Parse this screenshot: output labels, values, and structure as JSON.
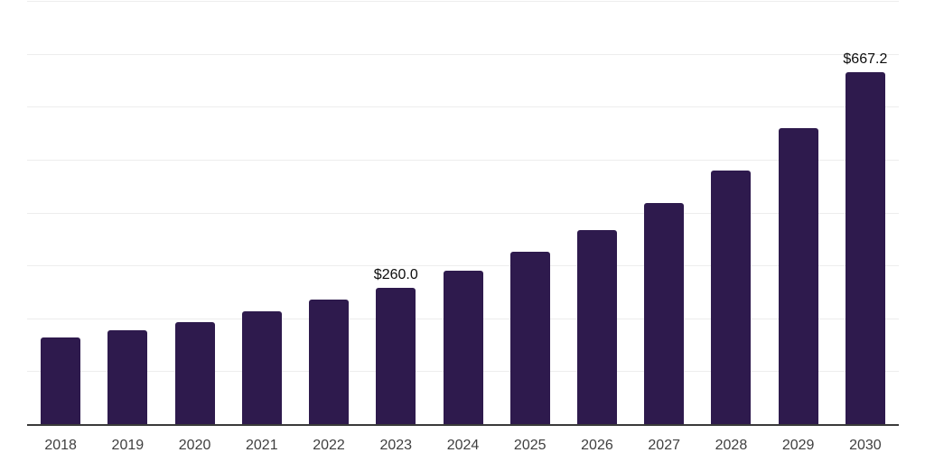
{
  "chart_data": {
    "type": "bar",
    "title": "",
    "xlabel": "",
    "ylabel": "",
    "categories": [
      "2018",
      "2019",
      "2020",
      "2021",
      "2022",
      "2023",
      "2024",
      "2025",
      "2026",
      "2027",
      "2028",
      "2029",
      "2030"
    ],
    "values": [
      165.3,
      179.0,
      195.2,
      214.8,
      236.9,
      260.0,
      291.5,
      327.3,
      368.2,
      419.3,
      480.7,
      560.8,
      667.2
    ],
    "data_labels": [
      "",
      "",
      "",
      "",
      "",
      "$260.0",
      "",
      "",
      "",
      "",
      "",
      "",
      "$667.2"
    ],
    "ylim": [
      0,
      800
    ],
    "gridline_step": 100,
    "grid": "horizontal",
    "legend_position": "none",
    "y_axis_tick_labels_visible": false,
    "colors": {
      "bar": "#2e1a4d",
      "gridline": "#ededed",
      "axis_line": "#3a3a3a",
      "tick_label": "#3f3f3f",
      "data_label": "#0d0d0d",
      "background": "#ffffff"
    }
  }
}
